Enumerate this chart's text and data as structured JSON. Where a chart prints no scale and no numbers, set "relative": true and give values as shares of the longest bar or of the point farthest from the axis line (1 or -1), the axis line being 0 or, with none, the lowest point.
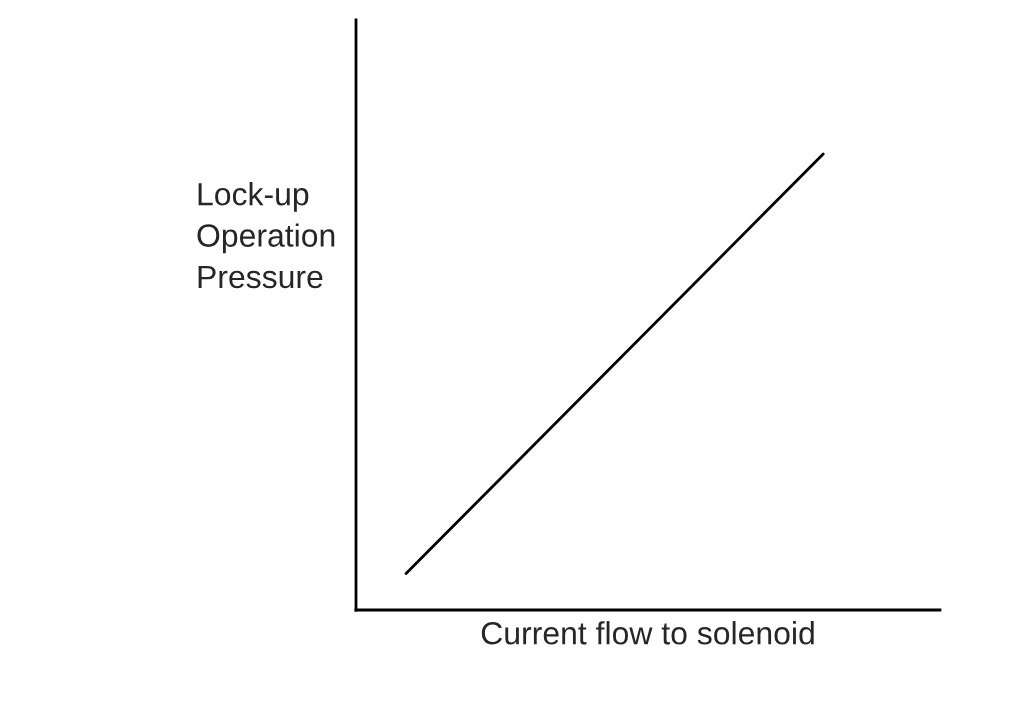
{
  "chart_data": {
    "type": "line",
    "relative": true,
    "xlabel": "Current flow to solenoid",
    "ylabel": "Lock-up\nOperation\nPressure",
    "categories": [
      null,
      null
    ],
    "series": [
      {
        "color": "#000000",
        "values": [
          0.08,
          1
        ]
      }
    ],
    "grid": false,
    "legend": false,
    "tick_labels": false,
    "marker": "none",
    "line_style": "solid"
  }
}
